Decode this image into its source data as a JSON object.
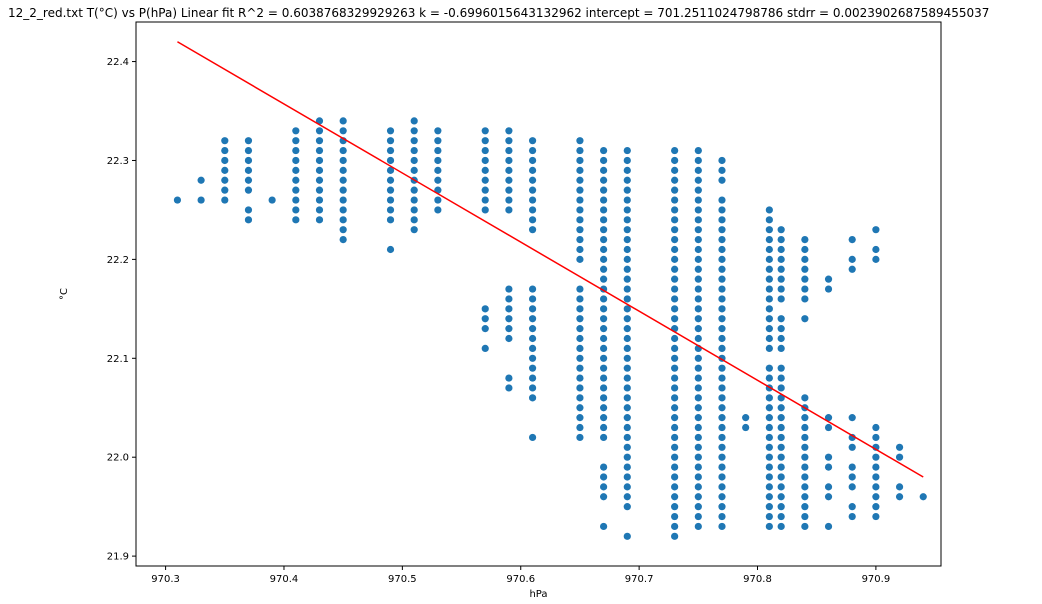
{
  "chart_data": {
    "type": "scatter",
    "title": "12_2_red.txt    T(°C) vs P(hPa)    Linear fit    R^2 = 0.6038768329929263  k = -0.6996015643132962  intercept = 701.2511024798786  stdrr = 0.0023902687589455037",
    "xlabel": "hPa",
    "ylabel": "°C",
    "xlim": [
      970.275,
      970.955
    ],
    "ylim": [
      21.89,
      22.44
    ],
    "xticks": [
      970.3,
      970.4,
      970.5,
      970.6,
      970.7,
      970.8,
      970.9
    ],
    "yticks": [
      21.9,
      22.0,
      22.1,
      22.2,
      22.3,
      22.4
    ],
    "xtick_labels": [
      "970.3",
      "970.4",
      "970.5",
      "970.6",
      "970.7",
      "970.8",
      "970.9"
    ],
    "ytick_labels": [
      "21.9",
      "22.0",
      "22.1",
      "22.2",
      "22.3",
      "22.4"
    ],
    "grid": false,
    "scatter_color": "#1f77b4",
    "fit_color": "#ff0000",
    "fit_line": {
      "x": [
        970.31,
        970.94
      ],
      "y": [
        22.42,
        21.98
      ]
    },
    "columns": [
      {
        "x": 970.31,
        "y": [
          22.26
        ]
      },
      {
        "x": 970.33,
        "y": [
          22.26,
          22.28
        ]
      },
      {
        "x": 970.35,
        "y": [
          22.26,
          22.27,
          22.28,
          22.29,
          22.3,
          22.31,
          22.32
        ]
      },
      {
        "x": 970.37,
        "y": [
          22.24,
          22.25,
          22.27,
          22.28,
          22.29,
          22.3,
          22.31,
          22.32
        ]
      },
      {
        "x": 970.39,
        "y": [
          22.26
        ]
      },
      {
        "x": 970.41,
        "y": [
          22.24,
          22.25,
          22.26,
          22.27,
          22.28,
          22.29,
          22.3,
          22.31,
          22.32,
          22.33
        ]
      },
      {
        "x": 970.43,
        "y": [
          22.24,
          22.25,
          22.26,
          22.27,
          22.28,
          22.29,
          22.3,
          22.31,
          22.32,
          22.33,
          22.34
        ]
      },
      {
        "x": 970.45,
        "y": [
          22.22,
          22.23,
          22.24,
          22.25,
          22.26,
          22.27,
          22.28,
          22.29,
          22.3,
          22.31,
          22.32,
          22.33,
          22.34
        ]
      },
      {
        "x": 970.49,
        "y": [
          22.21,
          22.24,
          22.25,
          22.26,
          22.27,
          22.28,
          22.29,
          22.3,
          22.31,
          22.32,
          22.33
        ]
      },
      {
        "x": 970.51,
        "y": [
          22.23,
          22.24,
          22.25,
          22.26,
          22.27,
          22.28,
          22.29,
          22.3,
          22.31,
          22.32,
          22.33,
          22.34
        ]
      },
      {
        "x": 970.53,
        "y": [
          22.25,
          22.26,
          22.27,
          22.28,
          22.29,
          22.3,
          22.31,
          22.32,
          22.33
        ]
      },
      {
        "x": 970.57,
        "y": [
          22.11,
          22.13,
          22.14,
          22.15,
          22.25,
          22.26,
          22.27,
          22.28,
          22.29,
          22.3,
          22.31,
          22.32,
          22.33
        ]
      },
      {
        "x": 970.59,
        "y": [
          22.07,
          22.08,
          22.12,
          22.13,
          22.14,
          22.15,
          22.16,
          22.17,
          22.25,
          22.26,
          22.27,
          22.28,
          22.29,
          22.3,
          22.31,
          22.32,
          22.33
        ]
      },
      {
        "x": 970.61,
        "y": [
          22.02,
          22.06,
          22.07,
          22.08,
          22.09,
          22.1,
          22.11,
          22.12,
          22.13,
          22.14,
          22.15,
          22.16,
          22.17,
          22.23,
          22.24,
          22.25,
          22.26,
          22.27,
          22.28,
          22.29,
          22.3,
          22.31,
          22.32
        ]
      },
      {
        "x": 970.65,
        "y": [
          22.02,
          22.03,
          22.04,
          22.05,
          22.06,
          22.07,
          22.08,
          22.09,
          22.1,
          22.11,
          22.12,
          22.13,
          22.14,
          22.15,
          22.16,
          22.17,
          22.2,
          22.21,
          22.22,
          22.23,
          22.24,
          22.25,
          22.26,
          22.27,
          22.28,
          22.29,
          22.3,
          22.31,
          22.32
        ]
      },
      {
        "x": 970.67,
        "y": [
          21.93,
          21.96,
          21.97,
          21.98,
          21.99,
          22.02,
          22.03,
          22.04,
          22.05,
          22.06,
          22.07,
          22.08,
          22.09,
          22.1,
          22.11,
          22.12,
          22.13,
          22.14,
          22.15,
          22.16,
          22.17,
          22.18,
          22.19,
          22.2,
          22.21,
          22.22,
          22.23,
          22.24,
          22.25,
          22.26,
          22.27,
          22.28,
          22.29,
          22.3,
          22.31
        ]
      },
      {
        "x": 970.69,
        "y": [
          21.92,
          21.95,
          21.96,
          21.97,
          21.98,
          21.99,
          22.0,
          22.01,
          22.02,
          22.03,
          22.04,
          22.05,
          22.06,
          22.07,
          22.08,
          22.09,
          22.1,
          22.11,
          22.12,
          22.13,
          22.14,
          22.15,
          22.16,
          22.17,
          22.18,
          22.19,
          22.2,
          22.21,
          22.22,
          22.23,
          22.24,
          22.25,
          22.26,
          22.27,
          22.28,
          22.29,
          22.3,
          22.31
        ]
      },
      {
        "x": 970.73,
        "y": [
          21.92,
          21.93,
          21.94,
          21.95,
          21.96,
          21.97,
          21.98,
          21.99,
          22.0,
          22.01,
          22.02,
          22.03,
          22.04,
          22.05,
          22.06,
          22.07,
          22.08,
          22.09,
          22.1,
          22.11,
          22.12,
          22.13,
          22.14,
          22.15,
          22.16,
          22.17,
          22.18,
          22.19,
          22.2,
          22.21,
          22.22,
          22.23,
          22.24,
          22.25,
          22.26,
          22.27,
          22.28,
          22.29,
          22.3,
          22.31
        ]
      },
      {
        "x": 970.75,
        "y": [
          21.93,
          21.94,
          21.95,
          21.96,
          21.97,
          21.98,
          21.99,
          22.0,
          22.01,
          22.02,
          22.03,
          22.04,
          22.05,
          22.06,
          22.07,
          22.08,
          22.09,
          22.1,
          22.11,
          22.12,
          22.13,
          22.14,
          22.15,
          22.16,
          22.17,
          22.18,
          22.19,
          22.2,
          22.21,
          22.22,
          22.23,
          22.24,
          22.25,
          22.26,
          22.27,
          22.28,
          22.29,
          22.3,
          22.31
        ]
      },
      {
        "x": 970.77,
        "y": [
          21.93,
          21.94,
          21.95,
          21.96,
          21.97,
          21.98,
          21.99,
          22.0,
          22.01,
          22.02,
          22.03,
          22.04,
          22.05,
          22.06,
          22.07,
          22.08,
          22.09,
          22.1,
          22.11,
          22.12,
          22.13,
          22.14,
          22.15,
          22.16,
          22.17,
          22.18,
          22.19,
          22.2,
          22.21,
          22.22,
          22.23,
          22.24,
          22.25,
          22.26,
          22.28,
          22.29,
          22.3
        ]
      },
      {
        "x": 970.79,
        "y": [
          22.03,
          22.04
        ]
      },
      {
        "x": 970.81,
        "y": [
          21.93,
          21.94,
          21.95,
          21.96,
          21.97,
          21.98,
          21.99,
          22.0,
          22.01,
          22.02,
          22.03,
          22.04,
          22.05,
          22.06,
          22.07,
          22.08,
          22.09,
          22.11,
          22.12,
          22.13,
          22.14,
          22.15,
          22.16,
          22.17,
          22.18,
          22.19,
          22.2,
          22.21,
          22.22,
          22.23,
          22.24,
          22.25
        ]
      },
      {
        "x": 970.82,
        "y": [
          21.93,
          21.94,
          21.95,
          21.96,
          21.97,
          21.98,
          21.99,
          22.0,
          22.01,
          22.02,
          22.03,
          22.04,
          22.05,
          22.06,
          22.07,
          22.08,
          22.09,
          22.11,
          22.12,
          22.13,
          22.14,
          22.16,
          22.17,
          22.18,
          22.19,
          22.2,
          22.21,
          22.22,
          22.23
        ]
      },
      {
        "x": 970.84,
        "y": [
          21.93,
          21.94,
          21.95,
          21.96,
          21.97,
          21.98,
          21.99,
          22.0,
          22.01,
          22.02,
          22.03,
          22.04,
          22.05,
          22.06,
          22.14,
          22.16,
          22.17,
          22.18,
          22.19,
          22.2,
          22.21,
          22.22
        ]
      },
      {
        "x": 970.86,
        "y": [
          21.93,
          21.96,
          21.97,
          21.99,
          22.0,
          22.03,
          22.04,
          22.17,
          22.18
        ]
      },
      {
        "x": 970.88,
        "y": [
          21.94,
          21.95,
          21.97,
          21.98,
          21.99,
          22.01,
          22.02,
          22.04,
          22.19,
          22.2,
          22.22
        ]
      },
      {
        "x": 970.9,
        "y": [
          21.94,
          21.95,
          21.96,
          21.97,
          21.98,
          21.99,
          22.0,
          22.01,
          22.02,
          22.03,
          22.2,
          22.21,
          22.23
        ]
      },
      {
        "x": 970.92,
        "y": [
          21.96,
          21.97,
          22.0,
          22.01
        ]
      },
      {
        "x": 970.94,
        "y": [
          21.96
        ]
      }
    ]
  }
}
